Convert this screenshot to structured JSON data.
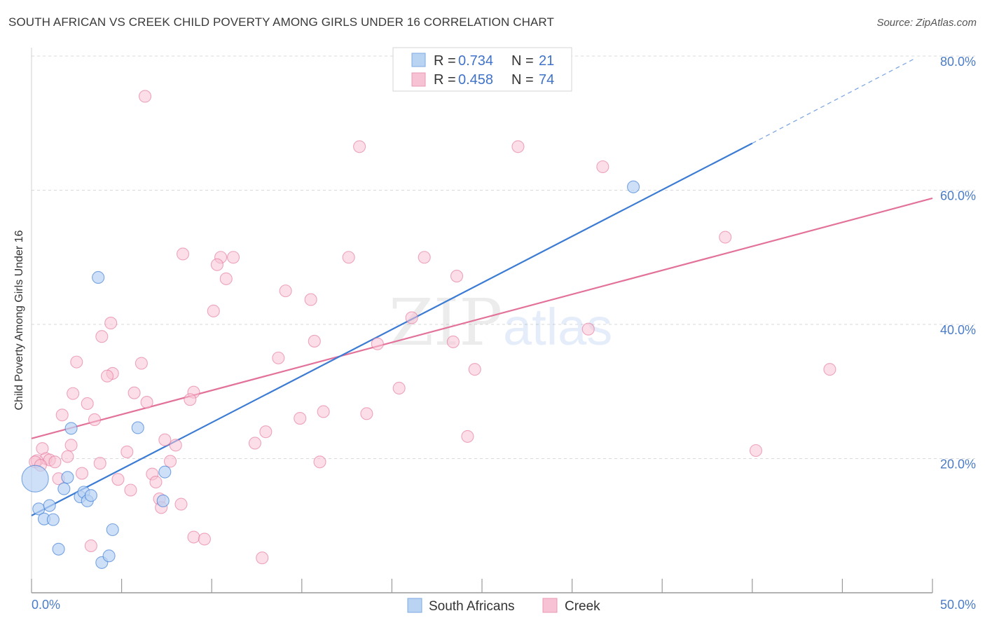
{
  "title": "SOUTH AFRICAN VS CREEK CHILD POVERTY AMONG GIRLS UNDER 16 CORRELATION CHART",
  "source": "Source: ZipAtlas.com",
  "colors": {
    "south_africans": "#3b7bd4",
    "south_africans_fill": "#b9d3f3",
    "creek": "#e3729a",
    "creek_fill": "#f7c3d4",
    "axis_text": "#4a7cc7",
    "grid": "#d9d9d9"
  },
  "legend": {
    "r_label": "R =",
    "n_label": "N =",
    "rows": [
      {
        "series": "South Africans",
        "r": "0.734",
        "n": "21"
      },
      {
        "series": "Creek",
        "r": "0.458",
        "n": "74"
      }
    ]
  },
  "chart_data": {
    "type": "scatter",
    "title": "SOUTH AFRICAN VS CREEK CHILD POVERTY AMONG GIRLS UNDER 16 CORRELATION CHART",
    "xlabel": "",
    "ylabel": "Child Poverty Among Girls Under 16",
    "xlim": [
      0,
      50
    ],
    "ylim": [
      0,
      80
    ],
    "x_tick_labels": [
      "0.0%",
      "50.0%"
    ],
    "y_ticks": [
      20,
      40,
      60,
      80
    ],
    "y_tick_labels": [
      "20.0%",
      "40.0%",
      "60.0%",
      "80.0%"
    ],
    "legend_position": "top-center",
    "series": [
      {
        "name": "South Africans",
        "points": [
          [
            0.2,
            17.0
          ],
          [
            0.4,
            12.5
          ],
          [
            0.7,
            11.0
          ],
          [
            1.0,
            13.0
          ],
          [
            1.2,
            10.9
          ],
          [
            1.5,
            6.5
          ],
          [
            1.8,
            15.5
          ],
          [
            2.0,
            17.2
          ],
          [
            2.2,
            24.5
          ],
          [
            2.7,
            14.3
          ],
          [
            2.9,
            15.0
          ],
          [
            3.1,
            13.7
          ],
          [
            3.3,
            14.5
          ],
          [
            3.7,
            47.0
          ],
          [
            3.9,
            4.5
          ],
          [
            4.3,
            5.5
          ],
          [
            4.5,
            9.4
          ],
          [
            5.9,
            24.6
          ],
          [
            7.3,
            13.7
          ],
          [
            7.4,
            18.0
          ],
          [
            33.4,
            60.5
          ]
        ],
        "trend": {
          "x0": 0,
          "y0": 11.5,
          "x1": 40,
          "y1": 67.0,
          "dashed_to_x": 49,
          "dashed_to_y": 79.6
        }
      },
      {
        "name": "Creek",
        "points": [
          [
            6.3,
            74.0
          ],
          [
            18.2,
            66.5
          ],
          [
            27.0,
            66.5
          ],
          [
            31.7,
            63.5
          ],
          [
            38.5,
            53.0
          ],
          [
            8.4,
            50.5
          ],
          [
            10.5,
            50.0
          ],
          [
            11.2,
            50.0
          ],
          [
            17.6,
            50.0
          ],
          [
            21.8,
            50.0
          ],
          [
            10.3,
            48.9
          ],
          [
            23.6,
            47.2
          ],
          [
            10.8,
            46.8
          ],
          [
            14.1,
            45.0
          ],
          [
            15.5,
            43.7
          ],
          [
            10.1,
            42.0
          ],
          [
            21.1,
            41.0
          ],
          [
            4.4,
            40.2
          ],
          [
            30.9,
            39.3
          ],
          [
            3.9,
            38.2
          ],
          [
            15.7,
            37.5
          ],
          [
            23.4,
            37.4
          ],
          [
            19.2,
            37.1
          ],
          [
            13.7,
            35.0
          ],
          [
            2.5,
            34.4
          ],
          [
            6.1,
            34.2
          ],
          [
            24.6,
            33.3
          ],
          [
            44.3,
            33.3
          ],
          [
            4.5,
            32.7
          ],
          [
            4.2,
            32.3
          ],
          [
            20.4,
            30.5
          ],
          [
            5.7,
            29.8
          ],
          [
            2.3,
            29.7
          ],
          [
            9.0,
            29.9
          ],
          [
            8.8,
            28.8
          ],
          [
            6.4,
            28.4
          ],
          [
            3.1,
            28.2
          ],
          [
            16.2,
            27.0
          ],
          [
            18.6,
            26.7
          ],
          [
            1.7,
            26.5
          ],
          [
            14.9,
            26.0
          ],
          [
            3.5,
            25.8
          ],
          [
            13.0,
            24.0
          ],
          [
            24.2,
            23.3
          ],
          [
            7.4,
            22.8
          ],
          [
            12.4,
            22.3
          ],
          [
            8.0,
            22.0
          ],
          [
            2.2,
            22.0
          ],
          [
            0.6,
            21.5
          ],
          [
            40.2,
            21.2
          ],
          [
            5.3,
            21.0
          ],
          [
            2.0,
            20.3
          ],
          [
            0.8,
            20.0
          ],
          [
            1.0,
            19.8
          ],
          [
            0.3,
            19.7
          ],
          [
            0.2,
            19.5
          ],
          [
            16.0,
            19.5
          ],
          [
            1.3,
            19.5
          ],
          [
            7.7,
            19.6
          ],
          [
            3.8,
            19.3
          ],
          [
            0.5,
            19.0
          ],
          [
            1.5,
            17.0
          ],
          [
            6.7,
            17.7
          ],
          [
            2.8,
            17.8
          ],
          [
            4.8,
            16.9
          ],
          [
            6.9,
            16.5
          ],
          [
            5.5,
            15.3
          ],
          [
            7.1,
            14.0
          ],
          [
            8.3,
            13.2
          ],
          [
            7.2,
            12.7
          ],
          [
            9.0,
            8.3
          ],
          [
            9.6,
            8.0
          ],
          [
            3.3,
            7.0
          ],
          [
            12.8,
            5.2
          ]
        ],
        "trend": {
          "x0": 0,
          "y0": 23.0,
          "x1": 50,
          "y1": 58.8
        }
      }
    ]
  }
}
